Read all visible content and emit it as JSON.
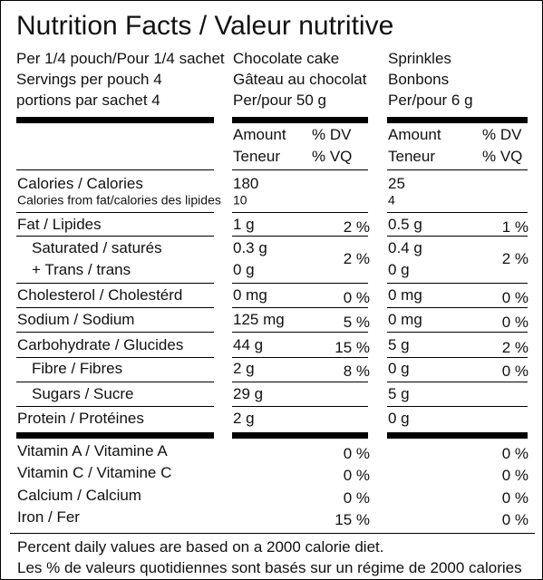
{
  "title": "Nutrition Facts / Valeur nutritive",
  "serving": [
    "Per 1/4 pouch/Pour 1/4 sachet",
    "Servings  per pouch 4",
    "portions par sachet 4"
  ],
  "columns": [
    {
      "name": "Chocolate cake",
      "name_fr": "Gâteau au chocolat",
      "per": "Per/pour 50 g",
      "amount": "Amount",
      "amount_fr": "Teneur",
      "dv": "% DV",
      "dv_fr": "% VQ"
    },
    {
      "name": "Sprinkles",
      "name_fr": "Bonbons",
      "per": "Per/pour 6 g",
      "amount": "Amount",
      "amount_fr": "Teneur",
      "dv": "% DV",
      "dv_fr": "% VQ"
    }
  ],
  "rows": [
    {
      "label": "Calories / Calories",
      "cake": "180",
      "sprinkles": "25"
    },
    {
      "label": "Calories from fat/calories des lipides",
      "cake": "10",
      "sprinkles": "4"
    },
    {
      "label": "Fat / Lipides",
      "cake": "1 g",
      "cake_dv": "2 %",
      "sprinkles": "0.5 g",
      "sprinkles_dv": "1 %"
    },
    {
      "label": "Saturated / saturés",
      "label2": "+ Trans / trans",
      "cake": "0.3 g",
      "cake2": "0 g",
      "cake_dv": "2 %",
      "sprinkles": "0.4 g",
      "sprinkles2": "0 g",
      "sprinkles_dv": "2 %"
    },
    {
      "label": "Cholesterol / Cholestérd",
      "cake": "0 mg",
      "cake_dv": "0 %",
      "sprinkles": "0 mg",
      "sprinkles_dv": "0 %"
    },
    {
      "label": "Sodium / Sodium",
      "cake": "125 mg",
      "cake_dv": "5 %",
      "sprinkles": "0 mg",
      "sprinkles_dv": "0 %"
    },
    {
      "label": "Carbohydrate / Glucides",
      "cake": "44 g",
      "cake_dv": "15 %",
      "sprinkles": "5 g",
      "sprinkles_dv": "2 %"
    },
    {
      "label": "Fibre / Fibres",
      "cake": "2 g",
      "cake_dv": "8 %",
      "sprinkles": "0 g",
      "sprinkles_dv": "0 %"
    },
    {
      "label": "Sugars / Sucre",
      "cake": "29 g",
      "sprinkles": "5 g"
    },
    {
      "label": "Protein / Protéines",
      "cake": "2 g",
      "sprinkles": "0 g"
    }
  ],
  "vitamins": [
    {
      "label": "Vitamin A / Vitamine A",
      "cake_dv": "0 %",
      "sprinkles_dv": "0 %"
    },
    {
      "label": "Vitamin C / Vitamine C",
      "cake_dv": "0 %",
      "sprinkles_dv": "0 %"
    },
    {
      "label": "Calcium / Calcium",
      "cake_dv": "0 %",
      "sprinkles_dv": "0 %"
    },
    {
      "label": "Iron / Fer",
      "cake_dv": "15 %",
      "sprinkles_dv": "0 %"
    }
  ],
  "footer": [
    "Percent daily values are based on a 2000 calorie diet.",
    "Les % de valeurs quotidiennes sont basés sur un régime de 2000 calories"
  ]
}
